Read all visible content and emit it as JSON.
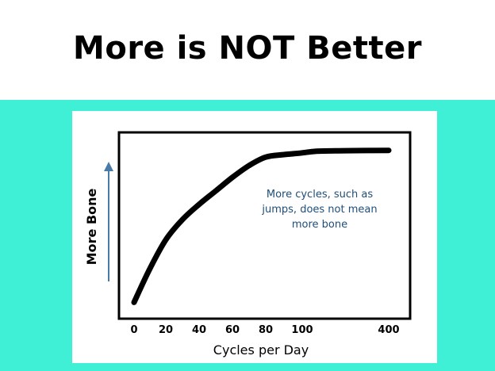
{
  "slide": {
    "title": "More is NOT Better"
  },
  "colors": {
    "band": "#3ff0d6",
    "curve": "#000000",
    "annotation": "#1f4e79",
    "arrow": "#4a7aa8"
  },
  "chart_data": {
    "type": "line",
    "title": "",
    "xlabel": "Cycles per Day",
    "ylabel": "More Bone",
    "x_ticks": [
      "0",
      "20",
      "40",
      "60",
      "80",
      "100",
      "400"
    ],
    "y_ticks": [],
    "grid": false,
    "series": [
      {
        "name": "",
        "points": [
          {
            "x": 0,
            "y": 0.05
          },
          {
            "x": 10,
            "y": 0.25
          },
          {
            "x": 20,
            "y": 0.42
          },
          {
            "x": 30,
            "y": 0.54
          },
          {
            "x": 40,
            "y": 0.63
          },
          {
            "x": 50,
            "y": 0.71
          },
          {
            "x": 60,
            "y": 0.79
          },
          {
            "x": 70,
            "y": 0.86
          },
          {
            "x": 80,
            "y": 0.91
          },
          {
            "x": 90,
            "y": 0.925
          },
          {
            "x": 100,
            "y": 0.935
          },
          {
            "x": 150,
            "y": 0.945
          },
          {
            "x": 250,
            "y": 0.948
          },
          {
            "x": 400,
            "y": 0.95
          }
        ]
      }
    ],
    "annotations": [
      "More cycles, such as",
      "jumps, does not mean",
      "more bone"
    ]
  }
}
